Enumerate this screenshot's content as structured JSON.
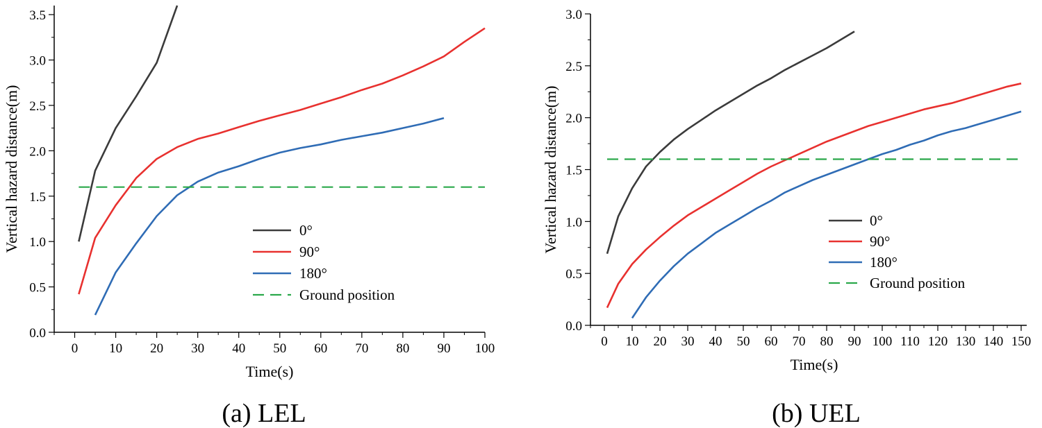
{
  "chart_data": [
    {
      "type": "line",
      "caption": "(a) LEL",
      "xlabel": "Time(s)",
      "ylabel": "Vertical hazard distance(m)",
      "xlim": [
        -5,
        100
      ],
      "ylim": [
        0,
        3.6
      ],
      "xticks": [
        0,
        10,
        20,
        30,
        40,
        50,
        60,
        70,
        80,
        90,
        100
      ],
      "xtick_labels": [
        "0",
        "10",
        "20",
        "30",
        "40",
        "50",
        "60",
        "70",
        "80",
        "90",
        "100"
      ],
      "yticks": [
        0,
        0.5,
        1,
        1.5,
        2,
        2.5,
        3,
        3.5
      ],
      "ytick_labels": [
        "0.0",
        "0.5",
        "1.0",
        "1.5",
        "2.0",
        "2.5",
        "3.0",
        "3.5"
      ],
      "series": [
        {
          "name": "0°",
          "color": "#3b3b3b",
          "x": [
            1,
            5,
            10,
            15,
            20,
            25
          ],
          "y": [
            1.0,
            1.78,
            2.25,
            2.6,
            2.97,
            3.6
          ]
        },
        {
          "name": "90°",
          "color": "#e8312f",
          "x": [
            1,
            5,
            10,
            15,
            20,
            25,
            30,
            35,
            40,
            45,
            50,
            55,
            60,
            65,
            70,
            75,
            80,
            85,
            90,
            95,
            100
          ],
          "y": [
            0.42,
            1.04,
            1.4,
            1.7,
            1.91,
            2.04,
            2.13,
            2.19,
            2.26,
            2.33,
            2.39,
            2.45,
            2.52,
            2.59,
            2.67,
            2.74,
            2.83,
            2.93,
            3.04,
            3.2,
            3.35
          ]
        },
        {
          "name": "180°",
          "color": "#2f6cb5",
          "x": [
            5,
            10,
            15,
            20,
            25,
            30,
            35,
            40,
            45,
            50,
            55,
            60,
            65,
            70,
            75,
            80,
            85,
            90
          ],
          "y": [
            0.19,
            0.66,
            0.98,
            1.28,
            1.51,
            1.66,
            1.76,
            1.83,
            1.91,
            1.98,
            2.03,
            2.07,
            2.12,
            2.16,
            2.2,
            2.25,
            2.3,
            2.36
          ]
        },
        {
          "name": "Ground position",
          "color": "#2aa84a",
          "dashed": true,
          "x": [
            1,
            100
          ],
          "y": [
            1.6,
            1.6
          ]
        }
      ]
    },
    {
      "type": "line",
      "caption": "(b) UEL",
      "xlabel": "Time(s)",
      "ylabel": "Vertical hazard distance(m)",
      "xlim": [
        -5,
        152
      ],
      "ylim": [
        0,
        3.0
      ],
      "xticks": [
        0,
        10,
        20,
        30,
        40,
        50,
        60,
        70,
        80,
        90,
        100,
        110,
        120,
        130,
        140,
        150
      ],
      "xtick_labels": [
        "0",
        "10",
        "20",
        "30",
        "40",
        "50",
        "60",
        "70",
        "80",
        "90",
        "100",
        "110",
        "120",
        "130",
        "140",
        "150"
      ],
      "yticks": [
        0,
        0.5,
        1,
        1.5,
        2,
        2.5,
        3
      ],
      "ytick_labels": [
        "0.0",
        "0.5",
        "1.0",
        "1.5",
        "2.0",
        "2.5",
        "3.0"
      ],
      "series": [
        {
          "name": "0°",
          "color": "#3b3b3b",
          "x": [
            1,
            5,
            10,
            15,
            20,
            25,
            30,
            35,
            40,
            45,
            50,
            55,
            60,
            65,
            70,
            75,
            80,
            85,
            90
          ],
          "y": [
            0.69,
            1.05,
            1.32,
            1.53,
            1.67,
            1.79,
            1.89,
            1.98,
            2.07,
            2.15,
            2.23,
            2.31,
            2.38,
            2.46,
            2.53,
            2.6,
            2.67,
            2.75,
            2.83
          ]
        },
        {
          "name": "90°",
          "color": "#e8312f",
          "x": [
            1,
            5,
            10,
            15,
            20,
            25,
            30,
            35,
            40,
            45,
            50,
            55,
            60,
            65,
            70,
            75,
            80,
            85,
            90,
            95,
            100,
            105,
            110,
            115,
            120,
            125,
            130,
            135,
            140,
            145,
            150
          ],
          "y": [
            0.17,
            0.4,
            0.59,
            0.73,
            0.85,
            0.96,
            1.06,
            1.14,
            1.22,
            1.3,
            1.38,
            1.46,
            1.53,
            1.59,
            1.65,
            1.71,
            1.77,
            1.82,
            1.87,
            1.92,
            1.96,
            2.0,
            2.04,
            2.08,
            2.11,
            2.14,
            2.18,
            2.22,
            2.26,
            2.3,
            2.33
          ]
        },
        {
          "name": "180°",
          "color": "#2f6cb5",
          "x": [
            10,
            15,
            20,
            25,
            30,
            35,
            40,
            45,
            50,
            55,
            60,
            65,
            70,
            75,
            80,
            85,
            90,
            95,
            100,
            105,
            110,
            115,
            120,
            125,
            130,
            135,
            140,
            145,
            150
          ],
          "y": [
            0.07,
            0.27,
            0.43,
            0.57,
            0.69,
            0.79,
            0.89,
            0.97,
            1.05,
            1.13,
            1.2,
            1.28,
            1.34,
            1.4,
            1.45,
            1.5,
            1.55,
            1.6,
            1.65,
            1.69,
            1.74,
            1.78,
            1.83,
            1.87,
            1.9,
            1.94,
            1.98,
            2.02,
            2.06
          ]
        },
        {
          "name": "Ground position",
          "color": "#2aa84a",
          "dashed": true,
          "x": [
            1,
            150
          ],
          "y": [
            1.6,
            1.6
          ]
        }
      ]
    }
  ]
}
